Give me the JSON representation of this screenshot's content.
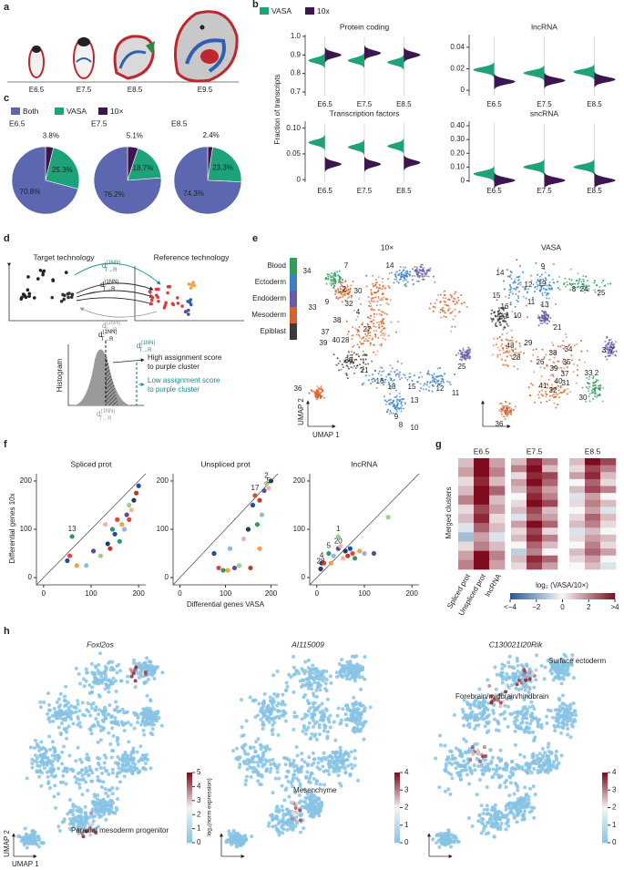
{
  "panel_letters": [
    "a",
    "b",
    "c",
    "d",
    "e",
    "f",
    "g",
    "h"
  ],
  "embryo_panel": {
    "stages": [
      "E6.5",
      "E7.5",
      "E8.5",
      "E9.5"
    ]
  },
  "schematic": {
    "target": "Target technology",
    "reference": "Reference technology",
    "d_top": {
      "base": "d",
      "sup": "(1NN)",
      "sub": "T→R"
    },
    "d_mid": {
      "base": "d",
      "sup": "(1NN)",
      "sub": "T→R"
    },
    "d_bottom": {
      "base": "d",
      "sup": "(1NN)",
      "sub": "T←R"
    },
    "d_hist": {
      "base": "d",
      "sup": "(1NN)",
      "sub": "T→R"
    },
    "d_hist_teal": {
      "base": "d",
      "sup": "(1NN)",
      "sub": "T→R"
    },
    "d_hist_bottom": {
      "base": "d",
      "sup": "(1NN)",
      "sub": "T←R"
    },
    "histogram": "Histogram",
    "high": [
      "High assignment score",
      "to purple cluster"
    ],
    "low": [
      "Low assignment score",
      "to purple cluster"
    ]
  },
  "chart_data": [
    {
      "type": "half-violin",
      "title": "Protein coding",
      "y_label": "Fraction of transcripts",
      "categories": [
        "E6.5",
        "E7.5",
        "E8.5"
      ],
      "series": [
        {
          "name": "VASA",
          "color": "#1ea27a",
          "values": [
            0.87,
            0.87,
            0.86
          ]
        },
        {
          "name": "10x",
          "color": "#3d1550",
          "values": [
            0.9,
            0.91,
            0.9
          ]
        }
      ],
      "ylim": [
        0.68,
        1.0
      ],
      "yticks": [
        0.7,
        0.8,
        0.9,
        {
          "value": 1,
          "label": "1.0"
        }
      ]
    },
    {
      "type": "half-violin",
      "title": "lncRNA",
      "categories": [
        "E6.5",
        "E7.5",
        "E8.5"
      ],
      "series": [
        {
          "color": "#1ea27a",
          "values": [
            0.019,
            0.016,
            0.017
          ]
        },
        {
          "color": "#3d1550",
          "values": [
            0.008,
            0.009,
            0.01
          ]
        }
      ],
      "ylim": [
        -0.005,
        0.05
      ],
      "yticks": [
        0,
        0.02,
        0.04
      ]
    },
    {
      "type": "half-violin",
      "title": "Transcription factors",
      "categories": [
        "E6.5",
        "E7.5",
        "E8.5"
      ],
      "series": [
        {
          "color": "#1ea27a",
          "values": [
            0.072,
            0.063,
            0.065
          ]
        },
        {
          "color": "#3d1550",
          "values": [
            0.03,
            0.03,
            0.033
          ]
        }
      ],
      "ylim": [
        -0.005,
        0.11
      ],
      "yticks": [
        0,
        0.05,
        {
          "value": 0.1,
          "label": "0.10"
        }
      ]
    },
    {
      "type": "half-violin",
      "title": "sncRNA",
      "categories": [
        "E6.5",
        "E7.5",
        "E8.5"
      ],
      "series": [
        {
          "color": "#1ea27a",
          "values": [
            0.05,
            0.1,
            0.1
          ]
        },
        {
          "color": "#3d1550",
          "values": [
            0.003,
            0.003,
            0.003
          ]
        }
      ],
      "ylim": [
        -0.01,
        0.42
      ],
      "yticks": [
        0,
        {
          "value": 0.1,
          "label": "0.10"
        },
        {
          "value": 0.2,
          "label": "0.20"
        },
        {
          "value": 0.3,
          "label": "0.30"
        },
        {
          "value": 0.4,
          "label": "0.40"
        }
      ]
    },
    {
      "type": "pie",
      "title": "E6.5",
      "labels": [
        "Both",
        "VASA",
        "10×"
      ],
      "values": [
        70.8,
        25.3,
        3.8
      ],
      "value_labels": [
        "70.8%",
        "25.3%",
        "3.8%"
      ],
      "colors": [
        "#5c67b0",
        "#1ea27a",
        "#3d1550"
      ]
    },
    {
      "type": "pie",
      "title": "E7.5",
      "values": [
        76.2,
        18.7,
        5.1
      ],
      "value_labels": [
        "76.2%",
        "18.7%",
        "5.1%"
      ],
      "colors": [
        "#5c67b0",
        "#1ea27a",
        "#3d1550"
      ]
    },
    {
      "type": "pie",
      "title": "E8.5",
      "values": [
        74.3,
        23.3,
        2.4
      ],
      "value_labels": [
        "74.3%",
        "23.3%",
        "2.4%"
      ],
      "colors": [
        "#5c67b0",
        "#1ea27a",
        "#3d1550"
      ]
    },
    {
      "type": "umap",
      "title": "10×",
      "x_label": "UMAP 1",
      "y_label": "UMAP 2",
      "lineages": {
        "names": [
          "Blood",
          "Ectoderm",
          "Endoderm",
          "Mesoderm",
          "Epiblast"
        ],
        "colors": [
          "#2e9e5b",
          "#3b7fc4",
          "#6b5aa8",
          "#d9622b",
          "#3a3a3a"
        ]
      },
      "labels": [
        "34",
        "7",
        "14",
        "2",
        "9",
        "30",
        "32",
        "33",
        "38",
        "4",
        "37",
        "40",
        "39",
        "28",
        "27",
        "35",
        "21",
        "16",
        "18",
        "15",
        "13",
        "12",
        "11",
        "25",
        "36",
        "9",
        "8",
        "10"
      ]
    },
    {
      "type": "umap",
      "title": "VASA",
      "labels": [
        "14",
        "9",
        "12",
        "19",
        "8",
        "24",
        "25",
        "15",
        "16",
        "20",
        "10",
        "11",
        "13",
        "21",
        "34",
        "43",
        "29",
        "38",
        "26",
        "35",
        "39",
        "37",
        "31",
        "40",
        "33",
        "32",
        "30",
        "2",
        "3",
        "7",
        "36",
        "41",
        "28"
      ]
    },
    {
      "type": "scatter",
      "title": "Spliced prot",
      "y_label": "Differential genes 10x",
      "palette": [
        "#1f4e9c",
        "#e8443a",
        "#2a9d5c",
        "#f0a04b",
        "#8fb8dd",
        "#5b4aa0",
        "#9cd08a",
        "#f5b5a6",
        "#253a6b",
        "#c0392b"
      ],
      "x": [
        50,
        55,
        60,
        70,
        90,
        105,
        120,
        130,
        135,
        140,
        150,
        155,
        160,
        165,
        170,
        175,
        180,
        185,
        190,
        195,
        200,
        180,
        145
      ],
      "y": [
        35,
        45,
        85,
        25,
        25,
        55,
        45,
        110,
        70,
        60,
        90,
        120,
        75,
        110,
        100,
        130,
        150,
        140,
        160,
        175,
        190,
        120,
        100
      ],
      "point_labels": [
        null,
        null,
        "13",
        null,
        null,
        null,
        null,
        null,
        null,
        null,
        null,
        null,
        null,
        null,
        null,
        null,
        null,
        null,
        null,
        null,
        null,
        null,
        null
      ],
      "xlim": [
        -15,
        215
      ],
      "ylim": [
        -15,
        215
      ],
      "xticks": [
        0,
        100,
        200
      ],
      "yticks": [
        0,
        100,
        200
      ],
      "diagonal": true
    },
    {
      "type": "scatter",
      "title": "Unspliced prot",
      "x_label": "Differential genes VASA",
      "palette": [
        "#1f4e9c",
        "#e8443a",
        "#2a9d5c",
        "#f0a04b",
        "#8fb8dd",
        "#5b4aa0",
        "#9cd08a",
        "#f5b5a6",
        "#253a6b",
        "#c0392b"
      ],
      "x": [
        75,
        85,
        95,
        105,
        110,
        120,
        130,
        140,
        150,
        155,
        160,
        165,
        170,
        175,
        180,
        185,
        190,
        195,
        200,
        175
      ],
      "y": [
        50,
        20,
        15,
        15,
        60,
        20,
        25,
        80,
        100,
        20,
        150,
        170,
        110,
        60,
        130,
        180,
        195,
        185,
        200,
        160
      ],
      "point_labels": [
        null,
        null,
        null,
        null,
        null,
        null,
        null,
        null,
        null,
        null,
        null,
        "17",
        null,
        null,
        null,
        null,
        "2",
        "5",
        null,
        null
      ],
      "xlim": [
        -15,
        215
      ],
      "ylim": [
        -15,
        215
      ],
      "xticks": [
        0,
        100,
        200
      ],
      "yticks": [
        0,
        100,
        200
      ],
      "diagonal": true
    },
    {
      "type": "scatter",
      "title": "lncRNA",
      "palette": [
        "#1f4e9c",
        "#e8443a",
        "#2a9d5c",
        "#f0a04b",
        "#8fb8dd",
        "#5b4aa0",
        "#9cd08a",
        "#f5b5a6",
        "#253a6b",
        "#c0392b"
      ],
      "x": [
        10,
        15,
        25,
        30,
        35,
        45,
        45,
        55,
        60,
        65,
        70,
        75,
        80,
        90,
        100,
        120,
        150,
        50,
        8
      ],
      "y": [
        30,
        30,
        50,
        30,
        45,
        60,
        85,
        40,
        55,
        45,
        60,
        50,
        40,
        55,
        50,
        50,
        125,
        65,
        18
      ],
      "point_labels": [
        "4",
        null,
        "5",
        null,
        null,
        "20",
        "1",
        null,
        null,
        null,
        null,
        null,
        null,
        null,
        null,
        null,
        null,
        null,
        "28"
      ],
      "xlim": [
        -15,
        215
      ],
      "ylim": [
        -15,
        215
      ],
      "xticks": [
        0,
        100,
        200
      ],
      "yticks": [
        0,
        100,
        200
      ],
      "diagonal": true
    },
    {
      "type": "heatmap",
      "y_label": "Merged clusters",
      "columns": [
        "Spliced prot",
        "Unspliced prot",
        "lncRNA"
      ],
      "blocks": [
        {
          "title": "E6.5",
          "values": [
            [
              1,
              4,
              1.5
            ],
            [
              1.5,
              4,
              2
            ],
            [
              0.5,
              3.5,
              1
            ],
            [
              1,
              4,
              2.5
            ],
            [
              2,
              4,
              1
            ],
            [
              0.5,
              3,
              1.5
            ],
            [
              1,
              3.5,
              0.5
            ],
            [
              -0.5,
              2.5,
              1
            ],
            [
              -1.5,
              1.5,
              -0.5
            ],
            [
              0.5,
              2,
              1
            ],
            [
              1.5,
              4,
              2
            ],
            [
              2,
              4,
              1.5
            ]
          ]
        },
        {
          "title": "E7.5",
          "values": [
            [
              1,
              3.5,
              2
            ],
            [
              2,
              4,
              1
            ],
            [
              0.5,
              3.5,
              3
            ],
            [
              1.5,
              4,
              2.5
            ],
            [
              1,
              3,
              1.5
            ],
            [
              0,
              3.5,
              2
            ],
            [
              0.5,
              4,
              3
            ],
            [
              1,
              3,
              1
            ],
            [
              -0.5,
              2.5,
              1.5
            ],
            [
              1.5,
              4,
              2.5
            ],
            [
              0.5,
              3,
              0.5
            ],
            [
              1,
              3.5,
              2
            ],
            [
              0,
              2.5,
              1
            ],
            [
              -1,
              2,
              0
            ],
            [
              1,
              3.5,
              2.5
            ],
            [
              0.5,
              3,
              1.5
            ]
          ]
        },
        {
          "title": "E8.5",
          "values": [
            [
              1,
              4,
              3
            ],
            [
              0.5,
              3,
              2
            ],
            [
              1.5,
              3.5,
              1
            ],
            [
              0,
              2.5,
              0.5
            ],
            [
              1,
              3,
              2
            ],
            [
              -0.5,
              1.5,
              0
            ],
            [
              0.5,
              2,
              1
            ],
            [
              0,
              1.5,
              -0.5
            ],
            [
              0.5,
              2.5,
              1
            ],
            [
              1,
              2,
              0.5
            ],
            [
              -0.5,
              1,
              0
            ],
            [
              0.5,
              1.5,
              1
            ],
            [
              0,
              2,
              0.5
            ],
            [
              1,
              2.5,
              1.5
            ],
            [
              0.5,
              1.5,
              0
            ],
            [
              0,
              1,
              -0.5
            ]
          ]
        }
      ],
      "colorbar": {
        "label": "log₂ (VASA/10×)",
        "lim": [
          -4,
          4
        ],
        "colors": [
          "#1f5a9c",
          "#f7f7f7",
          "#7f0b1f"
        ],
        "ticks": [
          {
            "value": -4,
            "label": "<−4"
          },
          {
            "value": -2,
            "label": "−2"
          },
          0,
          2,
          {
            "value": 4,
            "label": ">4"
          }
        ]
      }
    },
    {
      "type": "umap-feature",
      "title": "Foxl2os",
      "x_label": "UMAP 1",
      "y_label": "UMAP 2",
      "annotations": [
        "Paraxial mesoderm progenitor"
      ],
      "colorbar": {
        "label": "log₂(norm expression)",
        "lim": [
          0,
          5
        ],
        "ticks": [
          0,
          1,
          2,
          3,
          4,
          5
        ],
        "colors": [
          "#86c3e4",
          "#f4f4f4",
          "#7a0a19"
        ]
      }
    },
    {
      "type": "umap-feature",
      "title": "AI115009",
      "annotations": [
        "Mesenchyme"
      ],
      "colorbar": {
        "lim": [
          0,
          4
        ],
        "ticks": [
          0,
          1,
          2,
          3,
          4
        ],
        "colors": [
          "#86c3e4",
          "#f4f4f4",
          "#7a0a19"
        ]
      }
    },
    {
      "type": "umap-feature",
      "title": "C130021I20Rik",
      "annotations": [
        "Surface ectoderm",
        "Forebrain/midbrain/hindbrain"
      ],
      "colorbar": {
        "lim": [
          0,
          4
        ],
        "ticks": [
          0,
          1,
          2,
          3,
          4
        ],
        "colors": [
          "#86c3e4",
          "#f4f4f4",
          "#7a0a19"
        ]
      }
    }
  ]
}
